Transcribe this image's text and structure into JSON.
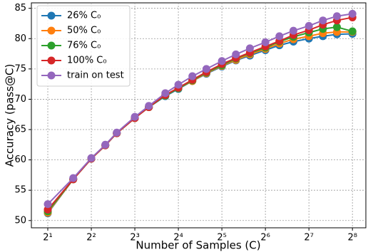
{
  "chart_data": {
    "type": "line",
    "x_label": "Number of Samples (C)",
    "y_label": "Accuracy (pass@C)",
    "x": [
      2,
      3,
      4,
      5,
      6,
      8,
      10,
      13,
      16,
      20,
      25,
      32,
      40,
      50,
      64,
      80,
      100,
      128,
      160,
      200,
      256
    ],
    "xscale": "log2",
    "xlim": [
      1.54,
      317
    ],
    "xticks": [
      {
        "value": 2,
        "label": "2¹"
      },
      {
        "value": 4,
        "label": "2²"
      },
      {
        "value": 8,
        "label": "2³"
      },
      {
        "value": 16,
        "label": "2⁴"
      },
      {
        "value": 32,
        "label": "2⁵"
      },
      {
        "value": 64,
        "label": "2⁶"
      },
      {
        "value": 128,
        "label": "2⁷"
      },
      {
        "value": 256,
        "label": "2⁸"
      }
    ],
    "ylim": [
      48.8,
      85.9
    ],
    "yticks": [
      50,
      55,
      60,
      65,
      70,
      75,
      80,
      85
    ],
    "grid": true,
    "legend": "upper left",
    "series": [
      {
        "name": "26% C₀",
        "color": "#1f77b4",
        "values": [
          51.2,
          56.8,
          60.2,
          62.4,
          64.4,
          66.9,
          68.7,
          70.5,
          71.7,
          73.0,
          74.2,
          75.4,
          76.4,
          77.2,
          78.1,
          78.9,
          79.5,
          80.0,
          80.4,
          80.7,
          80.8
        ]
      },
      {
        "name": "50% C₀",
        "color": "#ff7f0e",
        "values": [
          51.3,
          56.8,
          60.2,
          62.4,
          64.4,
          66.9,
          68.7,
          70.6,
          71.8,
          73.0,
          74.3,
          75.5,
          76.5,
          77.4,
          78.3,
          79.2,
          79.9,
          80.4,
          80.9,
          81.1,
          81.1
        ]
      },
      {
        "name": "76% C₀",
        "color": "#2ca02c",
        "values": [
          51.5,
          56.8,
          60.2,
          62.4,
          64.4,
          66.9,
          68.7,
          70.6,
          71.8,
          73.1,
          74.4,
          75.6,
          76.7,
          77.6,
          78.5,
          79.5,
          80.3,
          81.0,
          81.6,
          81.9,
          81.2
        ]
      },
      {
        "name": "100% C₀",
        "color": "#d62728",
        "values": [
          51.8,
          56.8,
          60.2,
          62.4,
          64.4,
          66.9,
          68.7,
          70.7,
          71.9,
          73.2,
          74.5,
          75.8,
          76.8,
          77.7,
          78.7,
          79.6,
          80.6,
          81.4,
          82.3,
          83.0,
          83.5
        ]
      },
      {
        "name": "train on test",
        "color": "#9467bd",
        "values": [
          52.7,
          57.0,
          60.3,
          62.5,
          64.5,
          67.1,
          68.9,
          71.0,
          72.4,
          73.8,
          75.0,
          76.3,
          77.4,
          78.4,
          79.4,
          80.4,
          81.3,
          82.1,
          83.0,
          83.7,
          84.1
        ]
      }
    ]
  }
}
